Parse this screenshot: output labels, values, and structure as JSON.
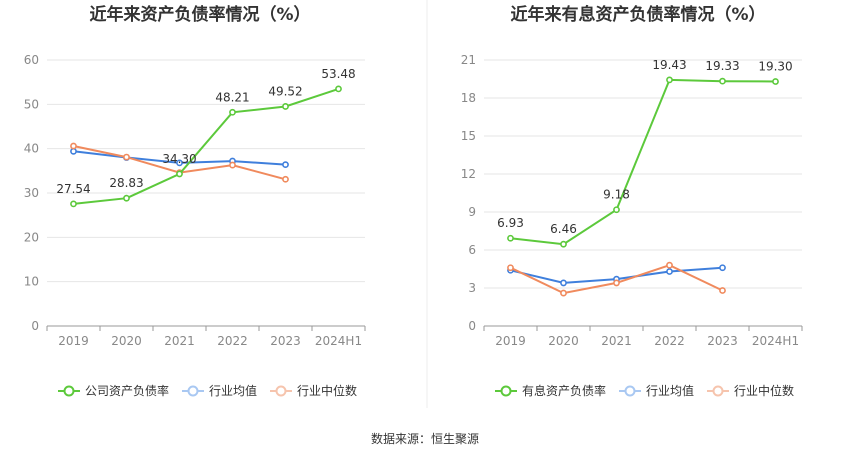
{
  "source": "数据来源：恒生聚源",
  "chart_data": [
    {
      "type": "line",
      "title": "近年来资产负债率情况（%）",
      "categories": [
        "2019",
        "2020",
        "2021",
        "2022",
        "2023",
        "2024H1"
      ],
      "ylim": [
        0,
        60
      ],
      "yticks": [
        "0",
        "10",
        "20",
        "30",
        "40",
        "50",
        "60"
      ],
      "grid": true,
      "legend_position": "bottom",
      "series": [
        {
          "name": "公司资产负债率",
          "color": "#5cc93b",
          "values": [
            27.54,
            28.83,
            34.3,
            48.21,
            49.52,
            53.48
          ],
          "labels": [
            "27.54",
            "28.83",
            "34.30",
            "48.21",
            "49.52",
            "53.48"
          ]
        },
        {
          "name": "行业均值",
          "color": "#3f7fdc",
          "values": [
            39.4,
            38.0,
            36.8,
            37.2,
            36.4,
            null
          ],
          "labels": []
        },
        {
          "name": "行业中位数",
          "color": "#f08a5d",
          "values": [
            40.6,
            38.1,
            34.6,
            36.3,
            33.1,
            null
          ],
          "labels": []
        }
      ]
    },
    {
      "type": "line",
      "title": "近年来有息资产负债率情况（%）",
      "categories": [
        "2019",
        "2020",
        "2021",
        "2022",
        "2023",
        "2024H1"
      ],
      "ylim": [
        0,
        21
      ],
      "yticks": [
        "0",
        "3",
        "6",
        "9",
        "12",
        "15",
        "18",
        "21"
      ],
      "grid": true,
      "legend_position": "bottom",
      "series": [
        {
          "name": "有息资产负债率",
          "color": "#5cc93b",
          "values": [
            6.93,
            6.46,
            9.18,
            19.43,
            19.33,
            19.3
          ],
          "labels": [
            "6.93",
            "6.46",
            "9.18",
            "19.43",
            "19.33",
            "19.30"
          ]
        },
        {
          "name": "行业均值",
          "color": "#3f7fdc",
          "values": [
            4.4,
            3.4,
            3.7,
            4.3,
            4.6,
            null
          ],
          "labels": []
        },
        {
          "name": "行业中位数",
          "color": "#f08a5d",
          "values": [
            4.6,
            2.6,
            3.4,
            4.8,
            2.8,
            null
          ],
          "labels": []
        }
      ]
    }
  ],
  "legend_pale_colors": [
    "#a9e39a",
    "#a9c8f2",
    "#f6c4ad"
  ]
}
